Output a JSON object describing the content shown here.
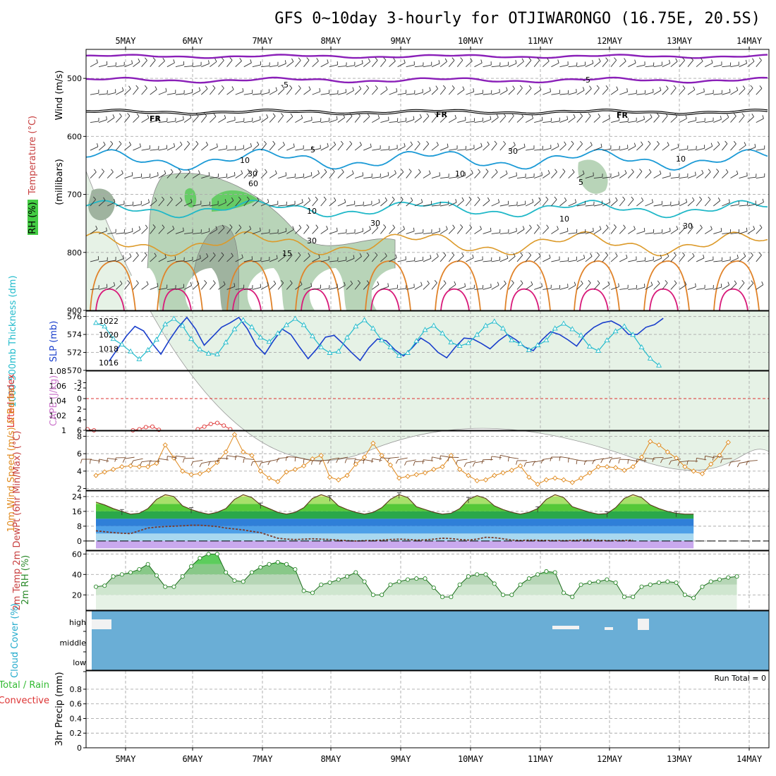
{
  "title": "GFS 0~10day 3-hourly for OTJIWARONGO (16.75E, 20.5S)",
  "dates": [
    "5MAY",
    "6MAY",
    "7MAY",
    "8MAY",
    "9MAY",
    "10MAY",
    "11MAY",
    "12MAY",
    "13MAY",
    "14MAY"
  ],
  "colors": {
    "temp_cold": "#8a1fb8",
    "temp_warm": "#e07a1e",
    "freeze": "#000000",
    "temp_mid": "#1b9ad6",
    "temp_10": "#20b8c8",
    "temp_15": "#dc9a2a",
    "temp_20": "#e0832a",
    "temp_25": "#d81b7a",
    "rh_low": "#e6f2e6",
    "rh_mid": "#b8d4b8",
    "rh_high": "#9fb39f",
    "rh_sat": "#66cc66",
    "thickness": "#1a3fcc",
    "slp": "#22bbcc",
    "lifted_index": "#dd3333",
    "cape": "#cc77cc",
    "wind10": "#e08a1e",
    "barb": "#7a4a2a",
    "dewpt": "#7a3a2a",
    "rh2m": "#2a8a2a",
    "cloud": "#6aaed6",
    "precip_total": "#33bb33",
    "precip_conv": "#dd3333"
  },
  "chart_data": [
    {
      "panel": "upper_air",
      "type": "heatmap",
      "ylabel_parts": [
        "Wind (m/s)",
        "Temperature (°C)",
        "RH (%)"
      ],
      "ylabel_units": "(millibars)",
      "ylim": [
        900,
        450
      ],
      "y_ticks": [
        500,
        600,
        700,
        800,
        900
      ],
      "isotherm_labels": [
        "-5",
        "FR",
        "5",
        "10",
        "15"
      ],
      "rh_labels": [
        "10",
        "30",
        "60",
        "30",
        "10",
        "30"
      ]
    },
    {
      "panel": "thickness_slp",
      "type": "line",
      "ylabel_left": "1000-500mb Thickness (dm)",
      "ylabel_right": "SLP (mb)",
      "y_ticks_left": [
        570,
        572,
        574,
        576
      ],
      "y_ticks_right": [
        1016,
        1018,
        1020,
        1022
      ],
      "series": [
        {
          "name": "1000-500mb Thickness (dm)",
          "values": [
            571.0,
            572.4,
            573.8,
            574.9,
            574.4,
            573.0,
            571.8,
            573.4,
            574.8,
            575.9,
            574.6,
            572.8,
            573.8,
            574.8,
            575.3,
            575.9,
            574.6,
            572.8,
            571.8,
            573.3,
            574.6,
            574.0,
            572.6,
            571.3,
            572.4,
            573.7,
            573.9,
            573.0,
            572.0,
            571.1,
            572.5,
            573.5,
            573.3,
            572.3,
            571.6,
            572.5,
            573.6,
            573.0,
            572.0,
            571.4,
            572.6,
            573.6,
            573.5,
            573.0,
            572.4,
            573.3,
            574.0,
            573.4,
            572.6,
            572.2,
            573.4,
            574.3,
            574.0,
            573.4,
            572.7,
            574.0,
            574.8,
            575.3,
            575.5,
            575.0,
            574.0,
            574.0,
            574.8,
            575.1,
            575.8
          ]
        },
        {
          "name": "SLP (mb)",
          "values": [
            1021.7,
            1021.2,
            1019.4,
            1018.6,
            1017.6,
            1016.5,
            1017.8,
            1019.3,
            1021.5,
            1022.3,
            1021.3,
            1019.4,
            1017.9,
            1017.3,
            1017.2,
            1018.9,
            1020.8,
            1022.1,
            1021.1,
            1019.6,
            1019.0,
            1020.2,
            1021.4,
            1022.3,
            1021.4,
            1019.8,
            1018.2,
            1017.4,
            1017.6,
            1019.6,
            1021.2,
            1022.1,
            1020.9,
            1019.2,
            1018.2,
            1017.0,
            1017.4,
            1019.1,
            1020.7,
            1021.3,
            1020.2,
            1018.9,
            1018.4,
            1018.8,
            1020.0,
            1021.3,
            1021.9,
            1020.9,
            1019.2,
            1018.7,
            1017.8,
            1018.5,
            1019.2,
            1020.9,
            1021.6,
            1020.8,
            1019.9,
            1018.3,
            1017.7,
            1019.2,
            1020.5,
            1021.2,
            1020.0,
            1018.2,
            1016.6,
            1015.6
          ]
        }
      ]
    },
    {
      "panel": "stability",
      "type": "line",
      "ylabel_left": "Lifted Index",
      "ylabel_right": "CAPE (J/kg)",
      "y_ticks_left": [
        -3,
        -2,
        0,
        2,
        4,
        6
      ],
      "y_ticks_right": [
        1,
        1.02,
        1.04,
        1.06,
        1.08
      ],
      "zero_line": 0,
      "series": [
        {
          "name": "Lifted Index",
          "values": [
            5.8,
            6.0,
            null,
            null,
            null,
            null,
            null,
            6.0,
            5.8,
            5.4,
            5.3,
            5.9,
            null,
            null,
            null,
            null,
            null,
            5.8,
            5.3,
            4.8,
            4.6,
            5.1,
            5.8
          ]
        }
      ]
    },
    {
      "panel": "wind10m",
      "type": "line",
      "ylabel": "10m Wind Speed (m/s) & Barbs",
      "y_ticks": [
        2,
        4,
        6,
        8
      ],
      "ylim": [
        1.8,
        8.6
      ],
      "series": [
        {
          "name": "10m Wind Speed",
          "values": [
            3.5,
            3.9,
            4.2,
            4.5,
            4.6,
            4.5,
            4.5,
            4.9,
            7.0,
            5.5,
            4.0,
            3.6,
            3.7,
            4.1,
            5.0,
            6.2,
            8.2,
            6.2,
            5.8,
            4.0,
            3.2,
            2.8,
            3.9,
            4.2,
            4.6,
            5.4,
            5.8,
            3.3,
            3.0,
            3.5,
            4.8,
            5.6,
            7.2,
            5.8,
            4.7,
            3.2,
            3.4,
            3.6,
            3.8,
            4.2,
            4.5,
            5.8,
            4.2,
            3.5,
            2.9,
            3.0,
            3.5,
            3.8,
            4.1,
            4.6,
            3.3,
            2.5,
            3.0,
            3.2,
            3.0,
            2.7,
            3.2,
            3.8,
            4.5,
            4.5,
            4.4,
            4.1,
            4.5,
            5.6,
            7.4,
            7.0,
            6.2,
            5.5,
            4.5,
            4.0,
            3.7,
            4.8,
            5.8,
            7.3
          ]
        }
      ]
    },
    {
      "panel": "temp2m",
      "type": "area",
      "ylabel": "2m Temp 2m DewPt (6hr Min/Max) (°C)",
      "y_ticks": [
        0,
        8,
        16,
        24
      ],
      "ylim": [
        -5,
        27
      ],
      "series": [
        {
          "name": "2m Temp",
          "values": [
            21.0,
            19.5,
            17.5,
            16.0,
            14.5,
            15.0,
            17.5,
            22.5,
            25.0,
            24.0,
            19.0,
            17.0,
            15.5,
            14.5,
            15.5,
            17.5,
            22.5,
            25.0,
            23.5,
            19.5,
            17.5,
            15.5,
            14.5,
            15.5,
            18.0,
            23.0,
            25.0,
            23.5,
            19.0,
            17.0,
            15.5,
            14.5,
            15.5,
            18.0,
            22.5,
            25.0,
            23.5,
            18.5,
            17.0,
            15.5,
            14.5,
            15.0,
            17.5,
            22.5,
            24.5,
            23.0,
            19.0,
            17.0,
            15.5,
            14.5,
            15.5,
            17.5,
            22.5,
            25.0,
            23.5,
            18.5,
            17.0,
            15.5,
            14.5,
            14.8,
            18.0,
            23.0,
            25.0,
            23.5,
            19.5,
            17.5,
            16.0,
            15.0,
            14.5,
            14.5
          ]
        },
        {
          "name": "2m DewPt",
          "values": [
            5.5,
            5.0,
            4.5,
            4.2,
            4.0,
            5.5,
            7.0,
            7.5,
            7.8,
            8.0,
            8.2,
            8.5,
            8.5,
            8.2,
            7.8,
            7.0,
            6.5,
            6.0,
            5.2,
            4.5,
            3.0,
            1.5,
            1.0,
            0.8,
            1.0,
            1.2,
            1.0,
            0.8,
            0.5,
            0.2,
            0.0,
            0.2,
            0.3,
            0.5,
            0.8,
            1.0,
            0.8,
            0.5,
            0.6,
            1.0,
            1.5,
            1.3,
            0.8,
            0.5,
            1.0,
            2.0,
            1.8,
            1.2,
            0.5,
            0.3,
            0.5,
            0.4,
            0.3,
            0.3,
            0.2,
            0.3,
            0.5,
            0.6,
            0.4,
            0.2,
            0.3,
            0.3,
            0.5
          ]
        }
      ]
    },
    {
      "panel": "rh2m",
      "type": "area",
      "ylabel": "2m RH (%)",
      "y_ticks": [
        20,
        40,
        60
      ],
      "ylim": [
        5,
        63
      ],
      "series": [
        {
          "name": "2m RH",
          "values": [
            28,
            29,
            38,
            40,
            42,
            45,
            50,
            39,
            28,
            28,
            38,
            48,
            56,
            60,
            60,
            42,
            34,
            33,
            42,
            47,
            50,
            52,
            50,
            45,
            24,
            22,
            30,
            32,
            35,
            38,
            42,
            33,
            20,
            20,
            30,
            33,
            35,
            36,
            36,
            27,
            18,
            18,
            30,
            38,
            40,
            40,
            31,
            20,
            20,
            30,
            36,
            40,
            43,
            42,
            22,
            18,
            30,
            32,
            33,
            35,
            32,
            18,
            18,
            28,
            30,
            32,
            33,
            32,
            20,
            17,
            28,
            33,
            35,
            37,
            38
          ]
        }
      ]
    },
    {
      "panel": "cloud",
      "type": "heatmap",
      "ylabel": "Cloud Cover (%)",
      "layers": [
        "high",
        "middle",
        "low"
      ]
    },
    {
      "panel": "precip",
      "type": "bar",
      "ylabel_parts": [
        "Total / Rain",
        "Convective"
      ],
      "ylabel": "3hr Precip (mm)",
      "y_ticks": [
        0,
        0.2,
        0.4,
        0.6,
        0.8
      ],
      "ylim": [
        0,
        1
      ],
      "values": [],
      "annotation": "Run Total = 0"
    }
  ]
}
